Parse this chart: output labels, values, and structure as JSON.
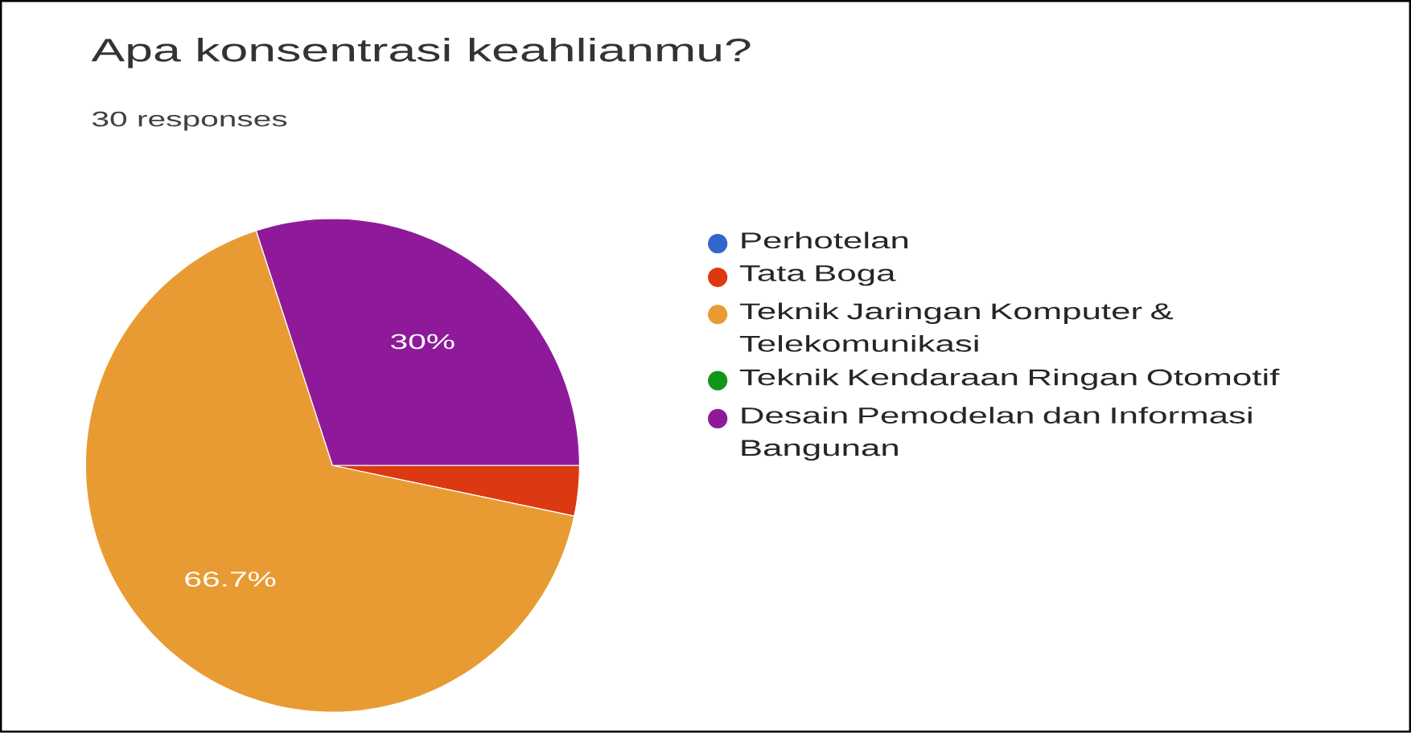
{
  "chart_data": {
    "type": "pie",
    "title": "Apa konsentrasi keahlianmu?",
    "subtitle": "30 responses",
    "categories": [
      "Perhotelan",
      "Tata Boga",
      "Teknik Jaringan Komputer & Telekomunikasi",
      "Teknik Kendaraan Ringan Otomotif",
      "Desain Pemodelan dan Informasi Bangunan"
    ],
    "values": [
      0,
      3.3,
      66.7,
      0,
      30
    ],
    "colors": [
      "#3366cc",
      "#dc3912",
      "#e99b33",
      "#109618",
      "#8e1a9a"
    ],
    "value_labels": [
      null,
      null,
      "66.7%",
      null,
      "30%"
    ],
    "legend": "right"
  }
}
